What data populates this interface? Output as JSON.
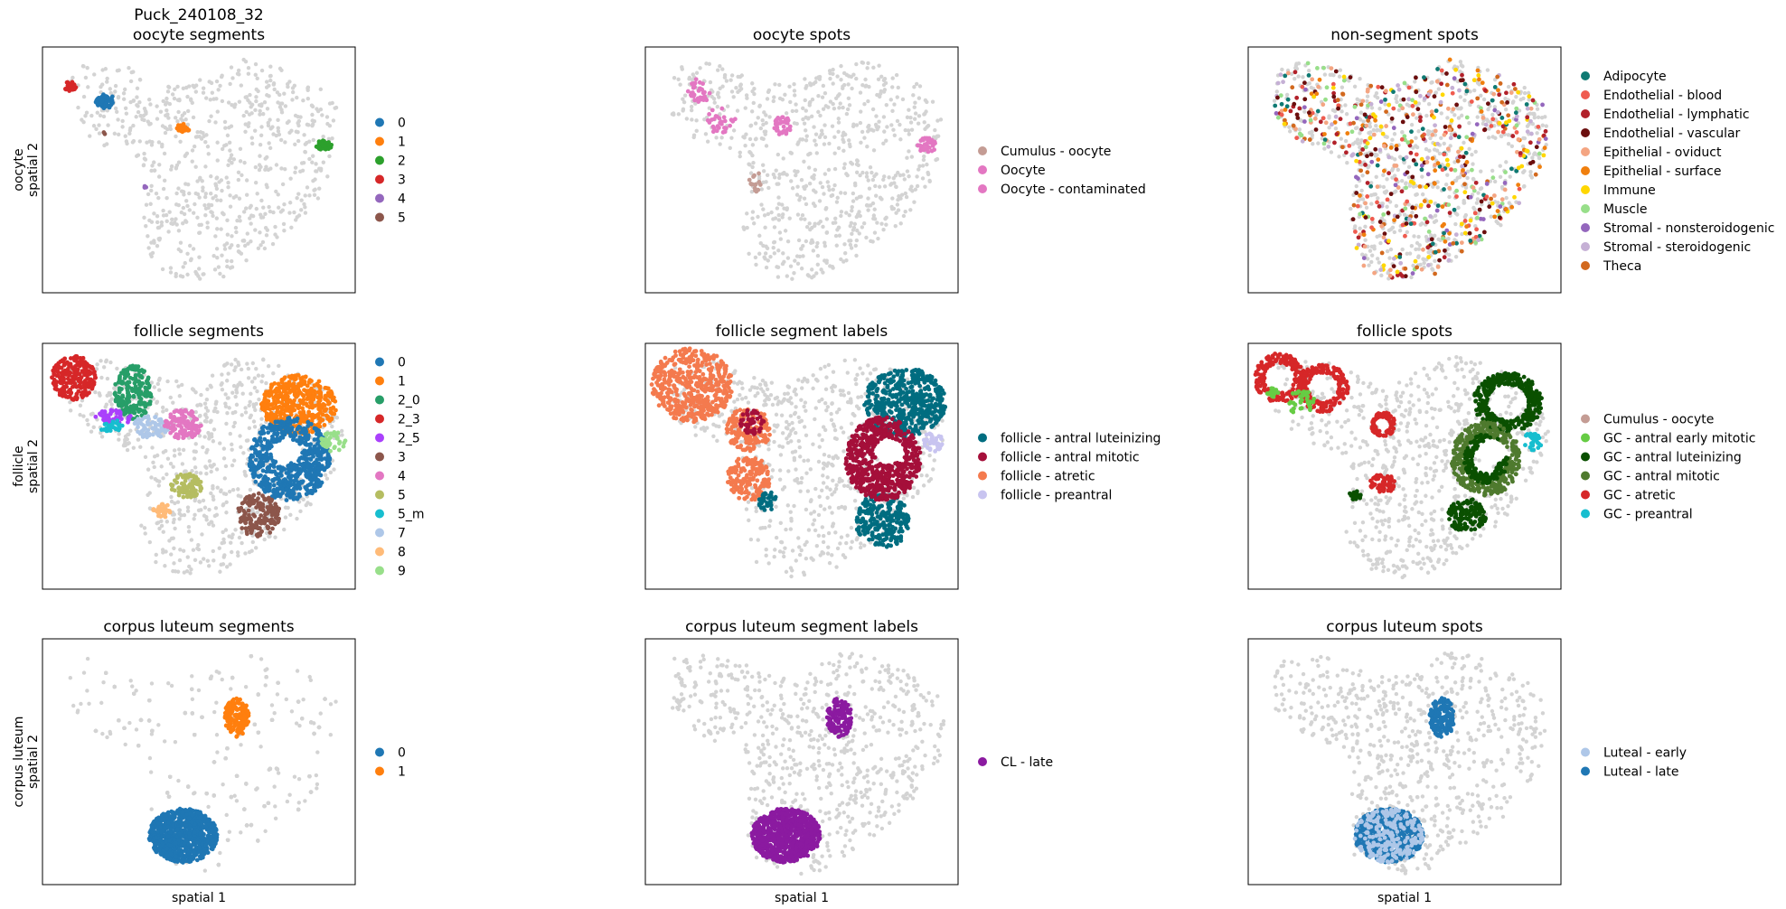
{
  "chart_data": {
    "type": "scatter",
    "figure_title": "Puck_240108_32",
    "background_color": "#d3d3d3",
    "panels": [
      {
        "title": "oocyte segments",
        "xlabel": "",
        "ylabel": "oocyte\nspatial 2",
        "legend": [
          {
            "label": "0",
            "color": "#1f77b4"
          },
          {
            "label": "1",
            "color": "#ff7f0e"
          },
          {
            "label": "2",
            "color": "#2ca02c"
          },
          {
            "label": "3",
            "color": "#d62728"
          },
          {
            "label": "4",
            "color": "#9467bd"
          },
          {
            "label": "5",
            "color": "#8c564b"
          }
        ]
      },
      {
        "title": "oocyte spots",
        "xlabel": "",
        "ylabel": "",
        "legend": [
          {
            "label": "Cumulus - oocyte",
            "color": "#c49c94"
          },
          {
            "label": "Oocyte",
            "color": "#e377c2"
          },
          {
            "label": "Oocyte - contaminated",
            "color": "#e377c2"
          }
        ]
      },
      {
        "title": "non-segment spots",
        "xlabel": "",
        "ylabel": "",
        "legend": [
          {
            "label": "Adipocyte",
            "color": "#0f7a73"
          },
          {
            "label": "Endothelial - blood",
            "color": "#ef5b4f"
          },
          {
            "label": "Endothelial - lymphatic",
            "color": "#b2212a"
          },
          {
            "label": "Endothelial - vascular",
            "color": "#6b0e0e"
          },
          {
            "label": "Epithelial - oviduct",
            "color": "#f4a582"
          },
          {
            "label": "Epithelial - surface",
            "color": "#f07f0e"
          },
          {
            "label": "Immune",
            "color": "#ffd700"
          },
          {
            "label": "Muscle",
            "color": "#98df8a"
          },
          {
            "label": "Stromal - nonsteroidogenic",
            "color": "#9467bd"
          },
          {
            "label": "Stromal - steroidogenic",
            "color": "#c5b0d5"
          },
          {
            "label": "Theca",
            "color": "#d2691e"
          }
        ]
      },
      {
        "title": "follicle segments",
        "xlabel": "",
        "ylabel": "follicle\nspatial 2",
        "legend": [
          {
            "label": "0",
            "color": "#1f77b4"
          },
          {
            "label": "1",
            "color": "#ff7f0e"
          },
          {
            "label": "2_0",
            "color": "#279e68"
          },
          {
            "label": "2_3",
            "color": "#d62728"
          },
          {
            "label": "2_5",
            "color": "#aa40fc"
          },
          {
            "label": "3",
            "color": "#8c564b"
          },
          {
            "label": "4",
            "color": "#e377c2"
          },
          {
            "label": "5",
            "color": "#b5bd61"
          },
          {
            "label": "5_m",
            "color": "#17becf"
          },
          {
            "label": "7",
            "color": "#aec7e8"
          },
          {
            "label": "8",
            "color": "#ffbb78"
          },
          {
            "label": "9",
            "color": "#98df8a"
          }
        ]
      },
      {
        "title": "follicle segment labels",
        "xlabel": "",
        "ylabel": "",
        "legend": [
          {
            "label": "follicle - antral luteinizing",
            "color": "#006d80"
          },
          {
            "label": "follicle - antral mitotic",
            "color": "#a50f3a"
          },
          {
            "label": "follicle - atretic",
            "color": "#f47a4e"
          },
          {
            "label": "follicle - preantral",
            "color": "#c8c4f0"
          }
        ]
      },
      {
        "title": "follicle spots",
        "xlabel": "",
        "ylabel": "",
        "legend": [
          {
            "label": "Cumulus - oocyte",
            "color": "#c49c94"
          },
          {
            "label": "GC - antral early mitotic",
            "color": "#66cc44"
          },
          {
            "label": "GC - antral luteinizing",
            "color": "#0a5000"
          },
          {
            "label": "GC - antral mitotic",
            "color": "#4f7a2e"
          },
          {
            "label": "GC - atretic",
            "color": "#d62728"
          },
          {
            "label": "GC - preantral",
            "color": "#17becf"
          }
        ]
      },
      {
        "title": "corpus luteum segments",
        "xlabel": "spatial 1",
        "ylabel": "corpus luteum\nspatial 2",
        "legend": [
          {
            "label": "0",
            "color": "#1f77b4"
          },
          {
            "label": "1",
            "color": "#ff7f0e"
          }
        ]
      },
      {
        "title": "corpus luteum segment labels",
        "xlabel": "spatial 1",
        "ylabel": "",
        "legend": [
          {
            "label": "CL - late",
            "color": "#8b1aa0"
          }
        ]
      },
      {
        "title": "corpus luteum spots",
        "xlabel": "spatial 1",
        "ylabel": "",
        "legend": [
          {
            "label": "Luteal - early",
            "color": "#aec7e8"
          },
          {
            "label": "Luteal - late",
            "color": "#1f77b4"
          }
        ]
      }
    ]
  }
}
